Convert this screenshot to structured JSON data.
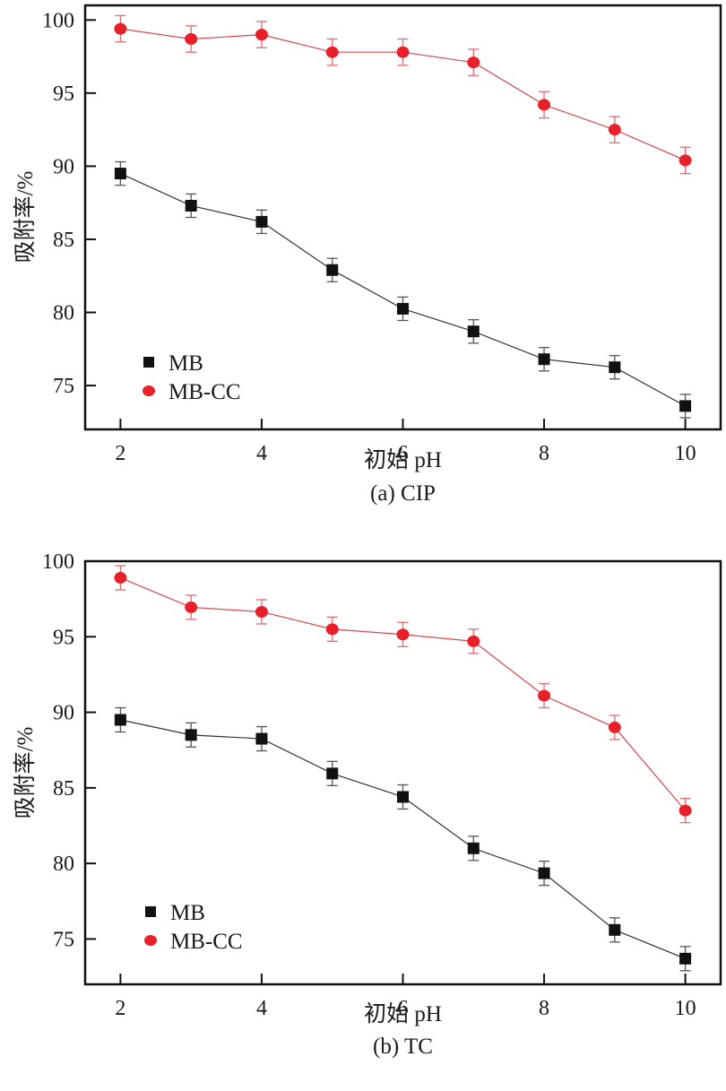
{
  "colors": {
    "mb": "#111111",
    "mb_line": "#333333",
    "mb_err": "#555555",
    "mbcc": "#e8202a",
    "mbcc_line": "#d8484f",
    "mbcc_err": "#e06a70",
    "axis": "#111111"
  },
  "chart_data": [
    {
      "type": "line",
      "title": "(a) CIP",
      "xlabel": "初始 pH",
      "ylabel": "吸附率/%",
      "xlim": [
        1.5,
        10.5
      ],
      "ylim": [
        72,
        101
      ],
      "xticks": [
        2,
        4,
        6,
        8,
        10
      ],
      "yticks": [
        75,
        80,
        85,
        90,
        95,
        100
      ],
      "grid": false,
      "legend_position": "bottom-left",
      "x": [
        2,
        3,
        4,
        5,
        6,
        7,
        8,
        9,
        10
      ],
      "series": [
        {
          "name": "MB",
          "marker": "square",
          "values": [
            89.5,
            87.3,
            86.2,
            82.9,
            80.25,
            78.7,
            76.8,
            76.25,
            73.6
          ],
          "error": 0.8
        },
        {
          "name": "MB-CC",
          "marker": "circle",
          "values": [
            99.4,
            98.7,
            99.0,
            97.8,
            97.8,
            97.1,
            94.2,
            92.5,
            90.4
          ],
          "error": 0.9
        }
      ]
    },
    {
      "type": "line",
      "title": "(b) TC",
      "xlabel": "初始 pH",
      "ylabel": "吸附率/%",
      "xlim": [
        1.5,
        10.5
      ],
      "ylim": [
        72,
        100
      ],
      "xticks": [
        2,
        4,
        6,
        8,
        10
      ],
      "yticks": [
        75,
        80,
        85,
        90,
        95,
        100
      ],
      "grid": false,
      "legend_position": "bottom-left",
      "x": [
        2,
        3,
        4,
        5,
        6,
        7,
        8,
        9,
        10
      ],
      "series": [
        {
          "name": "MB",
          "marker": "square",
          "values": [
            89.5,
            88.5,
            88.25,
            85.95,
            84.4,
            81.0,
            79.35,
            75.6,
            73.7
          ],
          "error": 0.8
        },
        {
          "name": "MB-CC",
          "marker": "circle",
          "values": [
            98.9,
            96.95,
            96.65,
            95.5,
            95.15,
            94.7,
            91.1,
            89.0,
            83.5
          ],
          "error": 0.8
        }
      ]
    }
  ]
}
